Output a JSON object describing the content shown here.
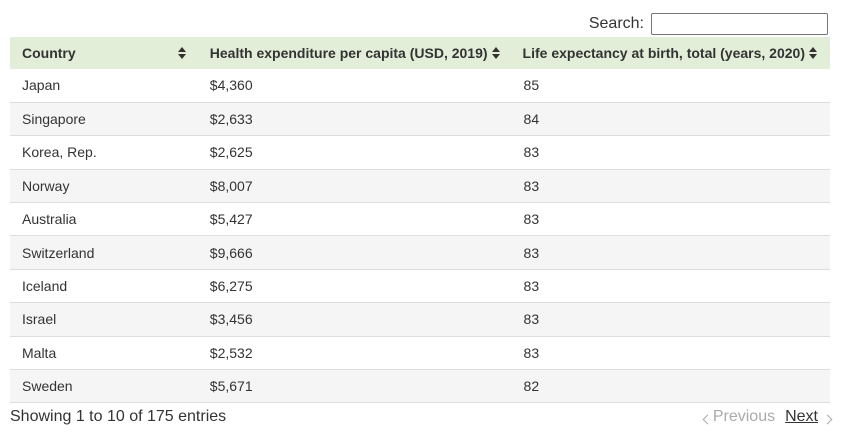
{
  "search": {
    "label": "Search:",
    "value": "",
    "placeholder": ""
  },
  "table": {
    "columns": [
      {
        "label": "Country"
      },
      {
        "label": "Health expenditure per capita (USD, 2019)"
      },
      {
        "label": "Life expectancy at birth, total (years, 2020)"
      }
    ],
    "rows": [
      {
        "country": "Japan",
        "health": "$4,360",
        "life": "85"
      },
      {
        "country": "Singapore",
        "health": "$2,633",
        "life": "84"
      },
      {
        "country": "Korea, Rep.",
        "health": "$2,625",
        "life": "83"
      },
      {
        "country": "Norway",
        "health": "$8,007",
        "life": "83"
      },
      {
        "country": "Australia",
        "health": "$5,427",
        "life": "83"
      },
      {
        "country": "Switzerland",
        "health": "$9,666",
        "life": "83"
      },
      {
        "country": "Iceland",
        "health": "$6,275",
        "life": "83"
      },
      {
        "country": "Israel",
        "health": "$3,456",
        "life": "83"
      },
      {
        "country": "Malta",
        "health": "$2,532",
        "life": "83"
      },
      {
        "country": "Sweden",
        "health": "$5,671",
        "life": "82"
      }
    ]
  },
  "footer": {
    "info": "Showing 1 to 10 of 175 entries",
    "previous_label": "Previous",
    "next_label": "Next"
  },
  "icons": {
    "sort": "sort-icon",
    "previous": "chevron-left-icon",
    "next": "chevron-right-icon"
  },
  "colors": {
    "header_bg": "#e2eed8",
    "stripe_bg": "#f5f5f5",
    "text": "#333333",
    "disabled": "#aaaaaa"
  }
}
